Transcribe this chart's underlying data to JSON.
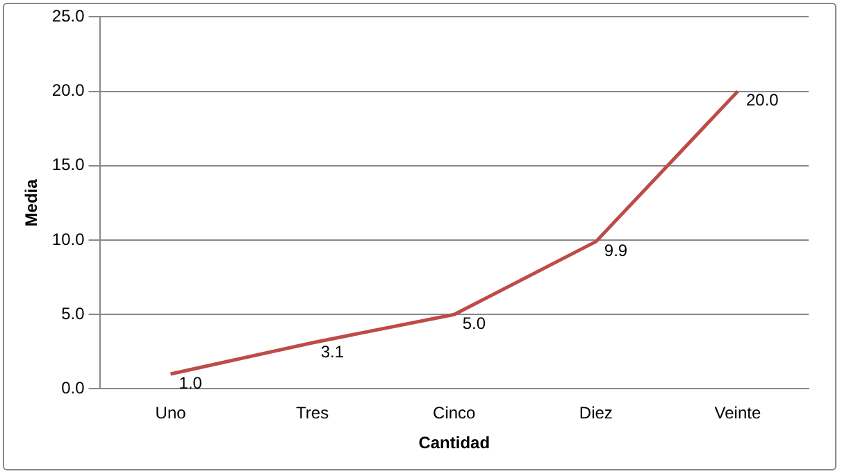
{
  "chart_data": {
    "type": "line",
    "xlabel": "Cantidad",
    "ylabel": "Media",
    "categories": [
      "Uno",
      "Tres",
      "Cinco",
      "Diez",
      "Veinte"
    ],
    "series": [
      {
        "color": "#be4b48",
        "values": [
          1.0,
          3.1,
          5.0,
          9.9,
          20.0
        ],
        "value_labels": [
          "1.0",
          "3.1",
          "5.0",
          "9.9",
          "20.0"
        ]
      }
    ],
    "ylim": [
      0,
      25
    ],
    "yticks": [
      {
        "value": 0,
        "label": "0.0"
      },
      {
        "value": 5,
        "label": "5.0"
      },
      {
        "value": 10,
        "label": "10.0"
      },
      {
        "value": 15,
        "label": "15.0"
      },
      {
        "value": 20,
        "label": "20.0"
      },
      {
        "value": 25,
        "label": "25.0"
      }
    ],
    "grid": "y",
    "legend": false,
    "marker": "none",
    "line_style": "solid"
  }
}
